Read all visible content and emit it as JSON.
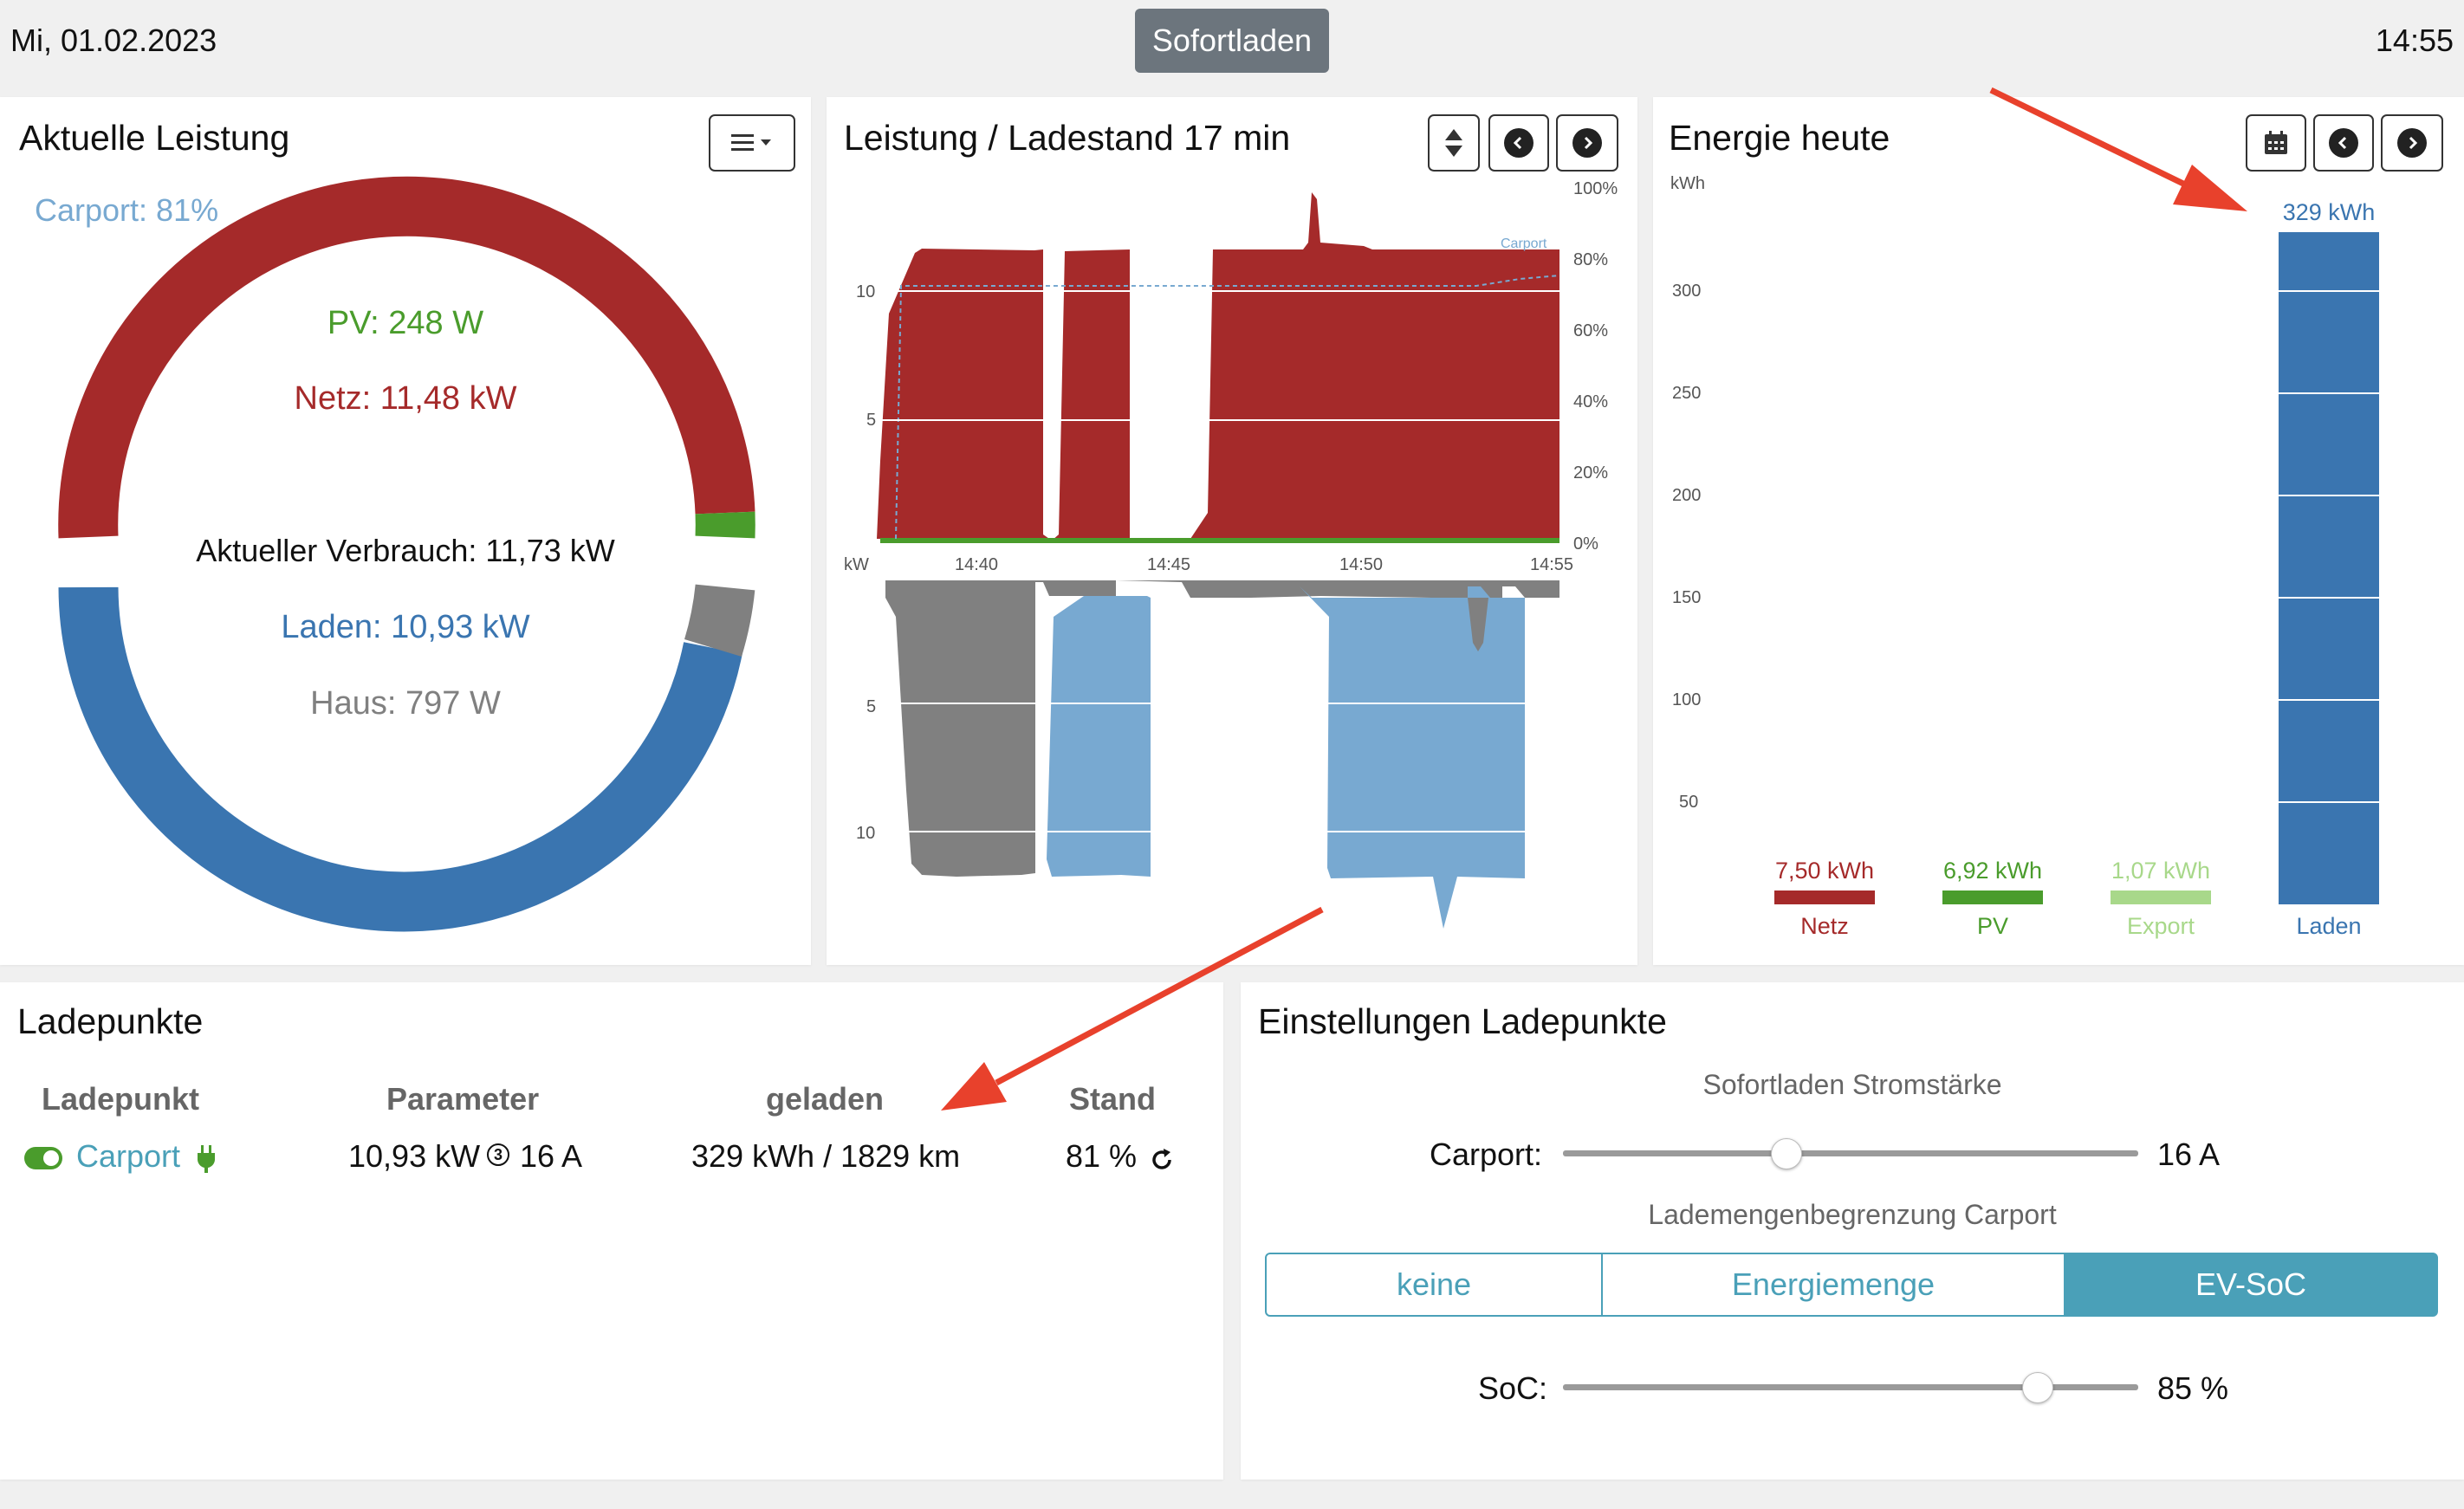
{
  "header": {
    "date": "Mi, 01.02.2023",
    "mode_button": "Sofortladen",
    "time": "14:55"
  },
  "colors": {
    "netz": "#a52a2a",
    "pv": "#4a9c2c",
    "laden": "#3a75b0",
    "haus": "#808080",
    "export": "#a8d88a",
    "laden_light": "#78a9d1",
    "accent": "#4aa0b8"
  },
  "power": {
    "title": "Aktuelle Leistung",
    "carport_label": "Carport: 81%",
    "pv_label": "PV: 248 W",
    "netz_label": "Netz: 11,48 kW",
    "verbrauch_label": "Aktueller Verbrauch: 11,73 kW",
    "laden_label": "Laden: 10,93 kW",
    "haus_label": "Haus: 797 W",
    "menu_icon": "menu-icon"
  },
  "history": {
    "title": "Leistung / Ladestand 17 min",
    "unit_label": "kW",
    "y_ticks_top": [
      "10",
      "5"
    ],
    "y_ticks_bottom": [
      "5",
      "10"
    ],
    "soc_ticks": [
      "100%",
      "80%",
      "60%",
      "40%",
      "20%",
      "0%"
    ],
    "x_ticks": [
      "14:40",
      "14:45",
      "14:50",
      "14:55"
    ],
    "soc_series_label": "Carport"
  },
  "energy": {
    "title": "Energie heute",
    "unit": "kWh",
    "y_ticks": [
      "300",
      "250",
      "200",
      "150",
      "100",
      "50"
    ]
  },
  "chart_data": {
    "type": "bar",
    "title": "Energie heute",
    "ylabel": "kWh",
    "ylim": [
      0,
      329
    ],
    "categories": [
      "Netz",
      "PV",
      "Export",
      "Laden"
    ],
    "values": [
      7.5,
      6.92,
      1.07,
      329
    ],
    "value_labels": [
      "7,50 kWh",
      "6,92 kWh",
      "1,07 kWh",
      "329 kWh"
    ]
  },
  "ladepunkte": {
    "title": "Ladepunkte",
    "headers": [
      "Ladepunkt",
      "Parameter",
      "geladen",
      "Stand"
    ],
    "row": {
      "name": "Carport",
      "power": "10,93 kW",
      "phases": "3",
      "current": "16 A",
      "energy": "329 kWh / 1829 km",
      "soc": "81 %"
    }
  },
  "settings": {
    "title": "Einstellungen Ladepunkte",
    "current_heading": "Sofortladen Stromstärke",
    "carport_label": "Carport:",
    "carport_value": "16 A",
    "carport_slider_fraction": 0.38,
    "limit_heading": "Lademengenbegrenzung Carport",
    "limit_options": [
      "keine",
      "Energiemenge",
      "EV-SoC"
    ],
    "limit_selected": "EV-SoC",
    "soc_label": "SoC:",
    "soc_value": "85 %",
    "soc_slider_fraction": 0.82
  }
}
